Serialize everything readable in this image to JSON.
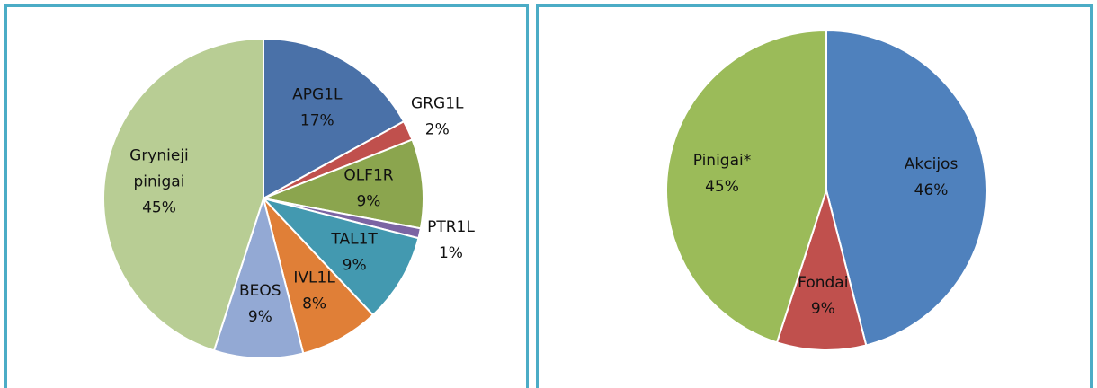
{
  "chart_data": [
    {
      "type": "pie",
      "categories": [
        "APG1L",
        "GRG1L",
        "OLF1R",
        "PTR1L",
        "TAL1T",
        "IVL1L",
        "BEOS",
        "Grynieji pinigai"
      ],
      "values": [
        17,
        2,
        9,
        1,
        9,
        8,
        9,
        45
      ],
      "value_labels": [
        "17%",
        "2%",
        "9%",
        "1%",
        "9%",
        "8%",
        "9%",
        "45%"
      ],
      "colors": [
        "#4a71a8",
        "#c0504d",
        "#8ba54e",
        "#7b64a3",
        "#4399b0",
        "#e07f37",
        "#93a9d4",
        "#b8cd94"
      ]
    },
    {
      "type": "pie",
      "categories": [
        "Akcijos",
        "Fondai",
        "Pinigai*"
      ],
      "values": [
        46,
        9,
        45
      ],
      "value_labels": [
        "46%",
        "9%",
        "45%"
      ],
      "colors": [
        "#4f81bd",
        "#c0504d",
        "#9bbb59"
      ]
    }
  ]
}
